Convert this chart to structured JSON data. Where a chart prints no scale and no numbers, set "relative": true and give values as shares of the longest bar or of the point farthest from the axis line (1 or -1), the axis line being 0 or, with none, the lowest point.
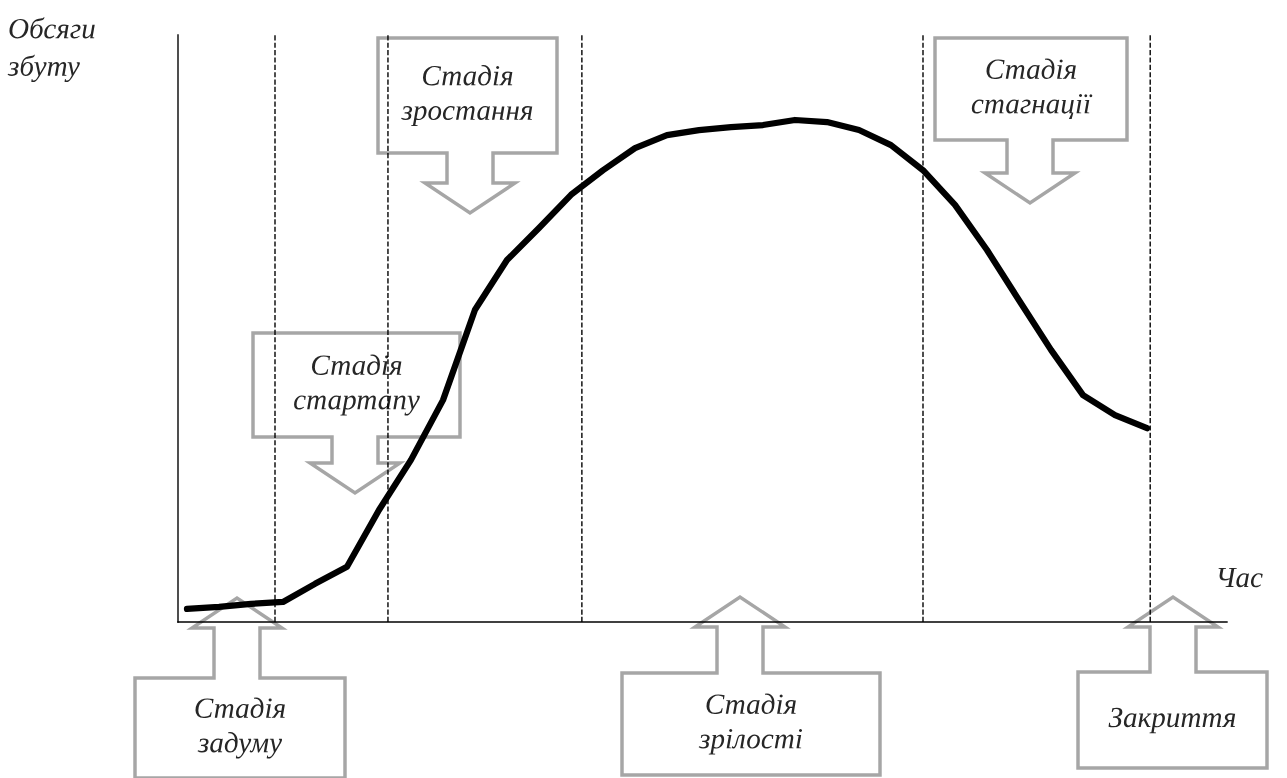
{
  "chart_data": {
    "type": "line",
    "relative": true,
    "xlabel": "Час",
    "ylabel": "Обсяги\nзбуту",
    "categories": [
      null,
      null,
      null,
      null,
      null,
      null,
      null,
      null,
      null,
      null,
      null,
      null,
      null,
      null,
      null,
      null,
      null,
      null,
      null,
      null,
      null,
      null,
      null,
      null,
      null,
      null,
      null,
      null,
      null,
      null,
      null
    ],
    "series": [
      {
        "color": "#000000",
        "values": [
          0.026,
          0.03,
          0.036,
          0.04,
          0.076,
          0.11,
          0.223,
          0.323,
          0.442,
          0.622,
          0.721,
          0.785,
          0.851,
          0.9,
          0.944,
          0.97,
          0.98,
          0.986,
          0.99,
          1.0,
          0.996,
          0.98,
          0.95,
          0.9,
          0.831,
          0.741,
          0.641,
          0.542,
          0.452,
          0.412,
          0.386
        ]
      }
    ],
    "marker": "none",
    "line_style": "solid",
    "annotations": [
      "Стадія\nзадуму",
      "Стадія\nстартапу",
      "Стадія\nзростання",
      "Стадія\nзрілості",
      "Стадія\nстагнації",
      "Закриття"
    ]
  }
}
